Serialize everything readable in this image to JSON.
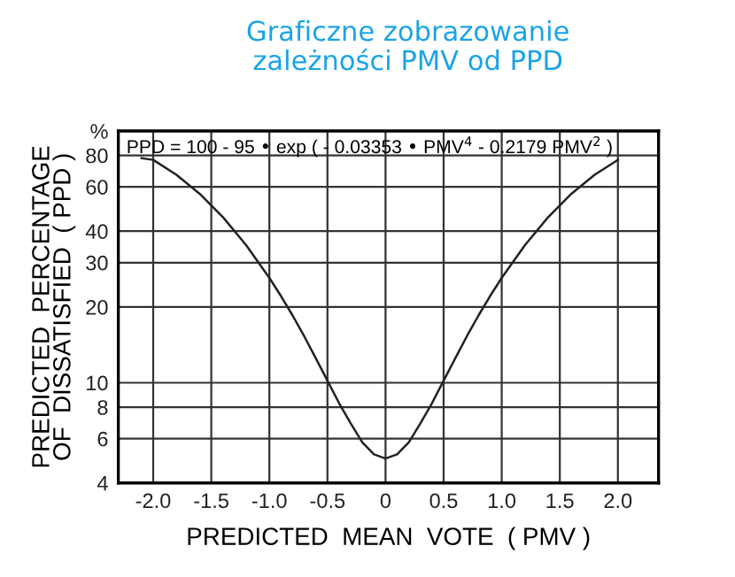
{
  "chart_data": {
    "type": "line",
    "title": "Graficzne zobrazowanie\nzależności PMV od PPD",
    "xlabel": "PREDICTED  MEAN  VOTE  ( PMV )",
    "ylabel": "PREDICTED  PERCENTAGE\nOF  DISSATISFIED  ( PPD )",
    "annotations": [
      "PPD = 100 - 95 • exp ( - 0.03353 • PMV$^{4}$ - 0.2179 PMV$^{2}$ )"
    ],
    "series": [
      {
        "color": "#222222",
        "x": [
          -2.1,
          -2.0,
          -1.8,
          -1.6,
          -1.4,
          -1.2,
          -1.0,
          -0.9,
          -0.8,
          -0.7,
          -0.6,
          -0.5,
          -0.4,
          -0.3,
          -0.2,
          -0.1,
          0,
          0.1,
          0.2,
          0.3,
          0.4,
          0.5,
          0.6,
          0.7,
          0.8,
          0.9,
          1.0,
          1.2,
          1.4,
          1.6,
          1.8,
          2.0
        ],
        "values": [
          78,
          76.8,
          67,
          56.3,
          45.5,
          35.2,
          26.1,
          22.1,
          18.5,
          15.3,
          12.5,
          10.2,
          8.3,
          6.9,
          5.8,
          5.2,
          5,
          5.2,
          5.8,
          6.9,
          8.3,
          10.2,
          12.5,
          15.3,
          18.5,
          22.1,
          26.1,
          35.2,
          45.5,
          56.3,
          67,
          76.8
        ]
      }
    ],
    "log": "y",
    "xlim": [
      -2.3,
      2.35
    ],
    "ylim": [
      4,
      100
    ],
    "xticks": [
      {
        "value": -2.0,
        "label": "-2.0"
      },
      {
        "value": -1.5,
        "label": "-1.5"
      },
      {
        "value": -1.0,
        "label": "-1.0"
      },
      {
        "value": -0.5,
        "label": "-0.5"
      },
      0,
      0.5,
      {
        "value": 1.0,
        "label": "1.0"
      },
      1.5,
      {
        "value": 2.0,
        "label": "2.0"
      }
    ],
    "yticks": [
      4,
      6,
      8,
      10,
      20,
      30,
      40,
      60,
      80,
      {
        "value": 100,
        "label": "%"
      }
    ],
    "grid": true,
    "marker": "none",
    "line_style": "solid"
  }
}
